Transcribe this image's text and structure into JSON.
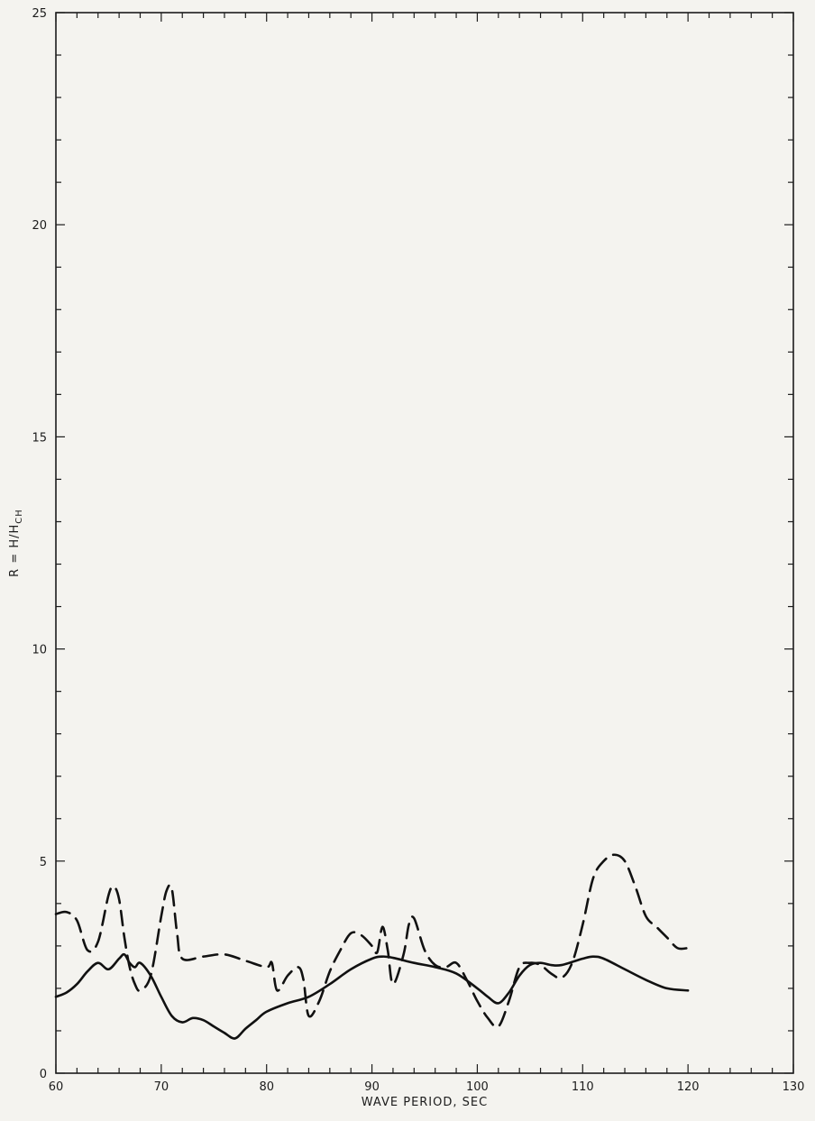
{
  "chart_data": {
    "type": "line",
    "title": "",
    "xlabel": "WAVE PERIOD, SEC",
    "ylabel": "R = H/H",
    "ylabel_subscript": "CH",
    "xlim": [
      60,
      130
    ],
    "ylim": [
      0,
      25
    ],
    "x_ticks": [
      "60",
      "70",
      "80",
      "90",
      "100",
      "110",
      "120",
      "130"
    ],
    "y_ticks": [
      "0",
      "5",
      "10",
      "15",
      "20",
      "25"
    ],
    "x_minor_step": 2,
    "y_minor_step": 1,
    "grid": false,
    "legend": "none",
    "colors": {
      "line": "#111111",
      "background": "#f4f3ef"
    },
    "series": [
      {
        "style": "solid",
        "x": [
          60,
          61,
          62,
          63,
          64,
          65,
          66,
          66.5,
          67,
          67.5,
          68,
          69,
          70,
          71,
          72,
          73,
          74,
          75,
          76,
          77,
          78,
          79,
          80,
          82,
          84,
          86,
          88,
          90,
          91,
          92,
          94,
          96,
          98,
          100,
          101,
          102,
          103,
          104,
          105,
          106,
          107,
          108,
          110,
          111,
          112,
          114,
          116,
          118,
          120
        ],
        "y": [
          1.8,
          1.9,
          2.1,
          2.4,
          2.6,
          2.45,
          2.7,
          2.8,
          2.6,
          2.5,
          2.6,
          2.3,
          1.8,
          1.35,
          1.2,
          1.3,
          1.25,
          1.1,
          0.95,
          0.82,
          1.05,
          1.25,
          1.45,
          1.65,
          1.8,
          2.1,
          2.45,
          2.7,
          2.75,
          2.72,
          2.6,
          2.5,
          2.35,
          2.0,
          1.8,
          1.65,
          1.9,
          2.3,
          2.55,
          2.6,
          2.55,
          2.55,
          2.7,
          2.75,
          2.7,
          2.45,
          2.2,
          2.0,
          1.95
        ]
      },
      {
        "style": "dashed",
        "x": [
          60,
          61,
          62,
          63,
          64,
          65,
          65.5,
          66,
          66.5,
          67,
          67.5,
          68,
          69,
          70,
          70.5,
          71,
          71.5,
          72,
          74,
          76,
          78,
          80,
          80.5,
          81,
          82,
          83,
          83.5,
          84,
          85,
          86,
          87,
          88,
          89,
          90,
          90.5,
          91,
          91.5,
          92,
          93,
          93.5,
          94,
          95,
          96,
          97,
          98,
          99,
          100,
          101,
          102,
          103,
          104,
          105,
          106,
          107,
          108,
          109,
          110,
          111,
          112,
          113,
          114,
          115,
          116,
          117,
          118,
          119,
          120
        ],
        "y": [
          3.75,
          3.8,
          3.6,
          2.9,
          3.1,
          4.2,
          4.4,
          4.1,
          3.2,
          2.5,
          2.1,
          1.95,
          2.3,
          3.7,
          4.3,
          4.35,
          3.3,
          2.7,
          2.75,
          2.8,
          2.65,
          2.5,
          2.6,
          1.95,
          2.3,
          2.5,
          2.2,
          1.35,
          1.7,
          2.4,
          2.9,
          3.3,
          3.25,
          3.0,
          2.85,
          3.45,
          2.9,
          2.1,
          2.8,
          3.5,
          3.65,
          2.9,
          2.55,
          2.5,
          2.6,
          2.2,
          1.7,
          1.3,
          1.1,
          1.7,
          2.5,
          2.6,
          2.55,
          2.35,
          2.25,
          2.6,
          3.5,
          4.6,
          5.0,
          5.15,
          5.0,
          4.4,
          3.7,
          3.45,
          3.2,
          2.95,
          2.95
        ]
      }
    ]
  }
}
